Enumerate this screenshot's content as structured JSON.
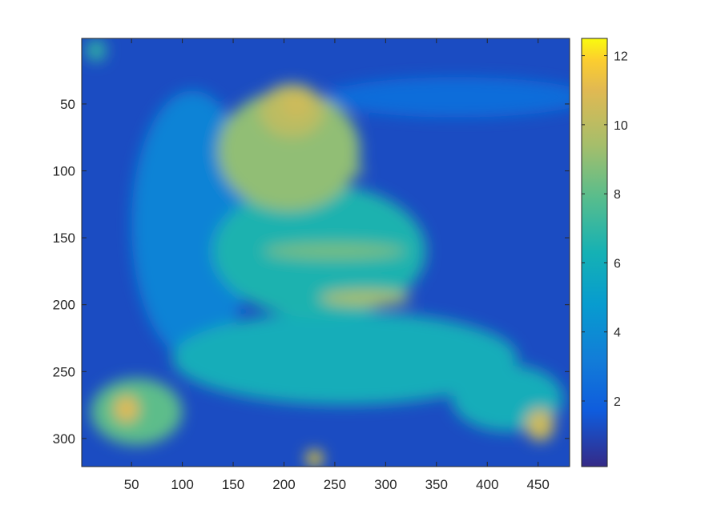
{
  "chart_data": {
    "type": "heatmap",
    "title": "",
    "xlabel": "",
    "ylabel": "",
    "colormap": "parula",
    "xlim": [
      1,
      481
    ],
    "ylim": [
      1,
      321
    ],
    "y_direction": "reverse",
    "grid": false,
    "x_ticks": [
      50,
      100,
      150,
      200,
      250,
      300,
      350,
      400,
      450
    ],
    "x_tick_labels": [
      "50",
      "100",
      "150",
      "200",
      "250",
      "300",
      "350",
      "400",
      "450"
    ],
    "y_ticks": [
      50,
      100,
      150,
      200,
      250,
      300
    ],
    "y_tick_labels": [
      "50",
      "100",
      "150",
      "200",
      "250",
      "300"
    ],
    "colorbar": {
      "location": "right",
      "limits": [
        0.1,
        12.5
      ],
      "ticks": [
        2,
        4,
        6,
        8,
        10,
        12
      ],
      "tick_labels": [
        "2",
        "4",
        "6",
        "8",
        "10",
        "12"
      ]
    },
    "background_value": 1.2,
    "regions": [
      {
        "name": "upper-body",
        "x": 205,
        "y": 85,
        "rx": 70,
        "ry": 45,
        "value": 9
      },
      {
        "name": "top-peak",
        "x": 208,
        "y": 55,
        "rx": 32,
        "ry": 20,
        "value": 10
      },
      {
        "name": "mid-body",
        "x": 235,
        "y": 160,
        "rx": 105,
        "ry": 50,
        "value": 6.5
      },
      {
        "name": "left-column",
        "x": 110,
        "y": 140,
        "rx": 60,
        "ry": 100,
        "value": 3.5
      },
      {
        "name": "lower-body",
        "x": 260,
        "y": 240,
        "rx": 170,
        "ry": 35,
        "value": 6
      },
      {
        "name": "right-arm",
        "x": 420,
        "y": 270,
        "rx": 55,
        "ry": 25,
        "value": 6
      },
      {
        "name": "bottom-left",
        "x": 55,
        "y": 280,
        "rx": 45,
        "ry": 25,
        "value": 8
      },
      {
        "name": "hotspot-left",
        "x": 45,
        "y": 278,
        "rx": 12,
        "ry": 10,
        "value": 11
      },
      {
        "name": "hotspot-right",
        "x": 452,
        "y": 290,
        "rx": 14,
        "ry": 12,
        "value": 10.5
      },
      {
        "name": "hotspot-bottom",
        "x": 230,
        "y": 315,
        "rx": 8,
        "ry": 6,
        "value": 12
      },
      {
        "name": "hotspot-top",
        "x": 212,
        "y": 50,
        "rx": 14,
        "ry": 10,
        "value": 10.5
      },
      {
        "name": "band-1",
        "x": 215,
        "y": 100,
        "rx": 65,
        "ry": 6,
        "value": 9
      },
      {
        "name": "band-2",
        "x": 250,
        "y": 160,
        "rx": 70,
        "ry": 6,
        "value": 8.5
      },
      {
        "name": "band-3",
        "x": 280,
        "y": 195,
        "rx": 45,
        "ry": 6,
        "value": 9.5
      },
      {
        "name": "top-right-streaks",
        "x": 370,
        "y": 45,
        "rx": 130,
        "ry": 15,
        "value": 2.5
      },
      {
        "name": "top-left-corner",
        "x": 15,
        "y": 10,
        "rx": 10,
        "ry": 8,
        "value": 7
      }
    ]
  }
}
